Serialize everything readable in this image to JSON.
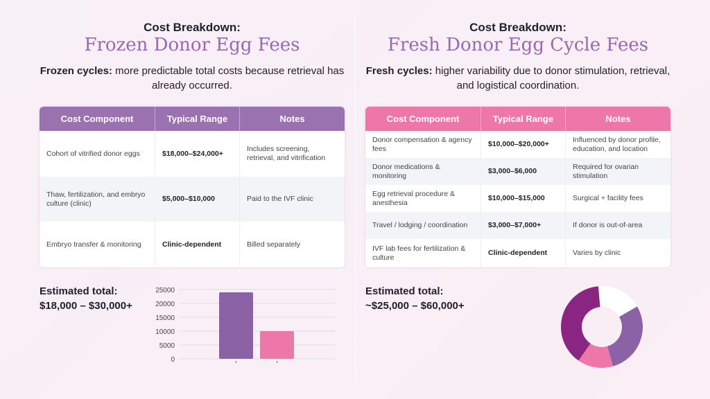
{
  "left": {
    "heading": "Cost Breakdown:",
    "title": "Frozen Donor Egg Fees",
    "subtitle_bold": "Frozen cycles:",
    "subtitle_rest": " more predictable total costs because retrieval has already occurred.",
    "header_color": "#9b72b0",
    "columns": [
      "Cost Component",
      "Typical Range",
      "Notes"
    ],
    "rows": [
      [
        "Cohort of vitrified donor eggs",
        "$18,000–$24,000+",
        "Includes screening, retrieval, and vitrification"
      ],
      [
        "Thaw, fertilization, and embryo culture (clinic)",
        "$5,000–$10,000",
        "Paid to the IVF clinic"
      ],
      [
        "Embryo transfer & monitoring",
        "Clinic-dependent",
        "Billed separately"
      ]
    ],
    "total_label": "Estimated total:",
    "total_value": "$18,000 – $30,000+"
  },
  "right": {
    "heading": "Cost Breakdown:",
    "title": "Fresh Donor Egg Cycle Fees",
    "subtitle_bold": "Fresh cycles:",
    "subtitle_rest": " higher variability due to donor stimulation, retrieval, and logistical coordination.",
    "header_color": "#ee77aa",
    "columns": [
      "Cost Component",
      "Typical Range",
      "Notes"
    ],
    "rows": [
      [
        "Donor compensation & agency fees",
        "$10,000–$20,000+",
        "Influenced by donor profile, education, and location"
      ],
      [
        "Donor medications & monitoring",
        "$3,000–$6,000",
        "Required for ovarian stimulation"
      ],
      [
        "Egg retrieval procedure & anesthesia",
        "$10,000–$15,000",
        "Surgical + facility fees"
      ],
      [
        "Travel / lodging / coordination",
        "$3,000–$7,000+",
        "If donor is out-of-area"
      ],
      [
        "IVF lab fees for fertilization & culture",
        "Clinic-dependent",
        "Varies by clinic"
      ]
    ],
    "total_label": "Estimated total:",
    "total_value": "~$25,000 – $60,000+"
  },
  "chart_data": [
    {
      "type": "bar",
      "categories": [
        "",
        ""
      ],
      "values": [
        24000,
        10000
      ],
      "colors": [
        "#8b62a6",
        "#ee77aa"
      ],
      "ylim": [
        0,
        25000
      ],
      "yticks": [
        0,
        5000,
        10000,
        15000,
        20000,
        25000
      ],
      "grid": true
    },
    {
      "type": "pie",
      "donut": true,
      "values": [
        18,
        29,
        14,
        39
      ],
      "colors": [
        "#ffffff",
        "#8b62a6",
        "#ee77aa",
        "#8a2581"
      ]
    }
  ]
}
